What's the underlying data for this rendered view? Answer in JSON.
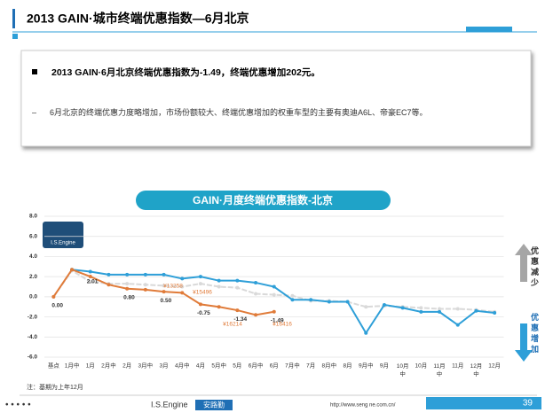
{
  "header": {
    "title": "2013 GAIN·城市终端优惠指数—6月北京"
  },
  "summary": {
    "bullet": "2013 GAIN·6月北京终端优惠指数为-1.49，终端优惠增加202元。",
    "detail": "6月北京的终端优惠力度略增加，市场份额较大、终端优惠增加的权重车型的主要有奥迪A6L、帝豪EC7等。"
  },
  "side": {
    "top": "优惠减少",
    "bottom": "优惠增加"
  },
  "note": "注：基期为上年12月",
  "footer": {
    "brand": "I.S.Engine",
    "brand2": "安路勤",
    "url": "http://www.seng ne.com.cn/",
    "page": "39"
  },
  "chart_data": {
    "type": "line",
    "title": "GAIN·月度终端优惠指数-北京",
    "categories": [
      "基点",
      "1月中",
      "1月",
      "2月中",
      "2月",
      "3月中",
      "3月",
      "4月中",
      "4月",
      "5月中",
      "5月",
      "6月中",
      "6月",
      "7月中",
      "7月",
      "8月中",
      "8月",
      "9月中",
      "9月",
      "10月中",
      "10月",
      "11月中",
      "11月",
      "12月中",
      "12月"
    ],
    "series": [
      {
        "color": "#d9d9d9",
        "values": [
          0,
          2.6,
          1.5,
          1.3,
          1.3,
          1.2,
          1.1,
          1.0,
          1.3,
          1.0,
          0.9,
          0.3,
          0.2,
          0.1,
          -0.4,
          -0.4,
          -0.5,
          -1.0,
          -0.9,
          -1.0,
          -1.1,
          -1.2,
          -1.2,
          -1.3,
          -1.5
        ]
      },
      {
        "color": "#2e9fd8",
        "values": [
          null,
          2.7,
          2.5,
          2.2,
          2.2,
          2.2,
          2.2,
          1.8,
          2.0,
          1.6,
          1.6,
          1.4,
          1.0,
          -0.3,
          -0.3,
          -0.5,
          -0.5,
          -3.6,
          -0.8,
          -1.1,
          -1.5,
          -1.5,
          -2.8,
          -1.4,
          -1.6
        ]
      },
      {
        "color": "#e07b39",
        "values": [
          0,
          2.7,
          2.01,
          1.2,
          0.8,
          0.7,
          0.5,
          0.4,
          -0.75,
          -1.0,
          -1.34,
          -1.8,
          -1.49,
          null,
          null,
          null,
          null,
          null,
          null,
          null,
          null,
          null,
          null,
          null,
          null
        ],
        "value_labels": [
          "0.00",
          null,
          "2.01",
          null,
          "0.80",
          null,
          "0.50",
          null,
          "-0.75",
          null,
          "-1.34",
          null,
          "-1.49",
          null,
          null,
          null,
          null,
          null,
          null,
          null,
          null,
          null,
          null,
          null,
          null
        ]
      }
    ],
    "annotations": [
      "¥13258",
      "¥15496",
      "¥16214",
      "¥16416"
    ],
    "ylim": [
      -6,
      8
    ],
    "yticks": [
      {
        "value": -6,
        "label": "-6.0"
      },
      {
        "value": -4,
        "label": "-4.0"
      },
      {
        "value": -2,
        "label": "-2.0"
      },
      {
        "value": 0,
        "label": "0.0"
      },
      {
        "value": 2,
        "label": "2.0"
      },
      {
        "value": 4,
        "label": "4.0"
      },
      {
        "value": 6,
        "label": "6.0"
      },
      {
        "value": 8,
        "label": "8.0"
      }
    ],
    "grid": true
  }
}
